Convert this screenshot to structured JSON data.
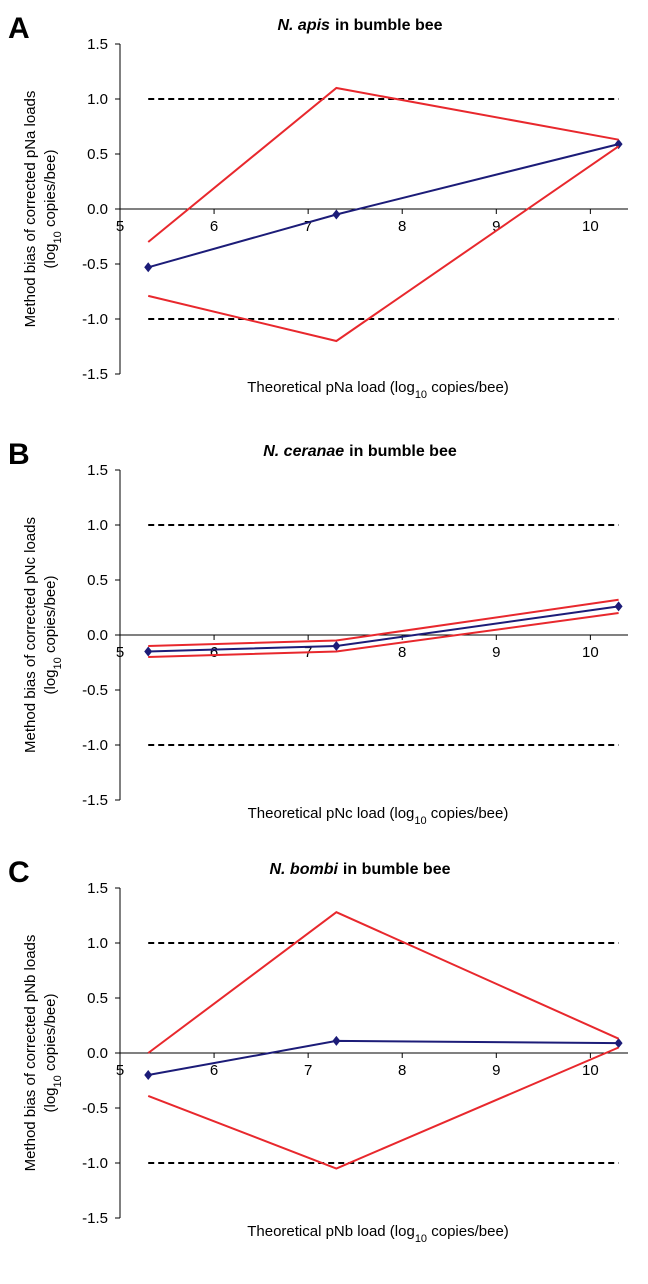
{
  "chart_data": [
    {
      "type": "line",
      "panel": "A",
      "title": [
        "N. apis",
        "in bumble bee"
      ],
      "ylabel": [
        "Method bias of corrected pNa loads",
        "(log",
        "10",
        " copies/bee)"
      ],
      "xlabel": [
        "Theoretical pNa load (log",
        "10",
        " copies/bee)"
      ],
      "x": [
        5.3,
        7.3,
        10.3
      ],
      "series": [
        {
          "color": "#1c1c78",
          "marker": "diamond",
          "values": [
            -0.53,
            -0.05,
            0.59
          ]
        },
        {
          "color": "#e8282d",
          "values": [
            -0.3,
            1.1,
            0.63
          ]
        },
        {
          "color": "#e8282d",
          "values": [
            -0.79,
            -1.2,
            0.57
          ]
        }
      ],
      "reference_lines": {
        "values": [
          1,
          -1
        ],
        "x": [
          5.3,
          10.3
        ]
      },
      "xlim": [
        5,
        10.4
      ],
      "xticks": [
        5,
        6,
        7,
        8,
        9,
        10
      ],
      "ylim": [
        -1.5,
        1.5
      ],
      "yticks": [
        {
          "value": -1.5,
          "label": "-1.5"
        },
        {
          "value": -1,
          "label": "-1.0"
        },
        {
          "value": -0.5,
          "label": "-0.5"
        },
        {
          "value": 0,
          "label": "0.0"
        },
        {
          "value": 0.5,
          "label": "0.5"
        },
        {
          "value": 1,
          "label": "1.0"
        },
        {
          "value": 1.5,
          "label": "1.5"
        }
      ]
    },
    {
      "type": "line",
      "panel": "B",
      "title": [
        "N. ceranae",
        "in bumble bee"
      ],
      "ylabel": [
        "Method bias of corrected pNc loads",
        "(log",
        "10",
        " copies/bee)"
      ],
      "xlabel": [
        "Theoretical pNc load (log",
        "10",
        " copies/bee)"
      ],
      "x": [
        5.3,
        7.3,
        10.3
      ],
      "series": [
        {
          "color": "#1c1c78",
          "marker": "diamond",
          "values": [
            -0.15,
            -0.1,
            0.26
          ]
        },
        {
          "color": "#e8282d",
          "values": [
            -0.1,
            -0.05,
            0.32
          ]
        },
        {
          "color": "#e8282d",
          "values": [
            -0.2,
            -0.15,
            0.2
          ]
        }
      ],
      "reference_lines": {
        "values": [
          1,
          -1
        ],
        "x": [
          5.3,
          10.3
        ]
      },
      "xlim": [
        5,
        10.4
      ],
      "xticks": [
        5,
        6,
        7,
        8,
        9,
        10
      ],
      "ylim": [
        -1.5,
        1.5
      ],
      "yticks": [
        {
          "value": -1.5,
          "label": "-1.5"
        },
        {
          "value": -1,
          "label": "-1.0"
        },
        {
          "value": -0.5,
          "label": "-0.5"
        },
        {
          "value": 0,
          "label": "0.0"
        },
        {
          "value": 0.5,
          "label": "0.5"
        },
        {
          "value": 1,
          "label": "1.0"
        },
        {
          "value": 1.5,
          "label": "1.5"
        }
      ]
    },
    {
      "type": "line",
      "panel": "C",
      "title": [
        "N. bombi",
        "in bumble bee"
      ],
      "ylabel": [
        "Method bias of corrected pNb loads",
        "(log",
        "10",
        " copies/bee)"
      ],
      "xlabel": [
        "Theoretical pNb load (log",
        "10",
        " copies/bee)"
      ],
      "x": [
        5.3,
        7.3,
        10.3
      ],
      "series": [
        {
          "color": "#1c1c78",
          "marker": "diamond",
          "values": [
            -0.2,
            0.11,
            0.09
          ]
        },
        {
          "color": "#e8282d",
          "values": [
            0,
            1.28,
            0.13
          ]
        },
        {
          "color": "#e8282d",
          "values": [
            -0.39,
            -1.05,
            0.05
          ]
        }
      ],
      "reference_lines": {
        "values": [
          1,
          -1
        ],
        "x": [
          5.3,
          10.3
        ]
      },
      "xlim": [
        5,
        10.4
      ],
      "xticks": [
        5,
        6,
        7,
        8,
        9,
        10
      ],
      "ylim": [
        -1.5,
        1.5
      ],
      "yticks": [
        {
          "value": -1.5,
          "label": "-1.5"
        },
        {
          "value": -1,
          "label": "-1.0"
        },
        {
          "value": -0.5,
          "label": "-0.5"
        },
        {
          "value": 0,
          "label": "0.0"
        },
        {
          "value": 0.5,
          "label": "0.5"
        },
        {
          "value": 1,
          "label": "1.0"
        },
        {
          "value": 1.5,
          "label": "1.5"
        }
      ]
    }
  ]
}
